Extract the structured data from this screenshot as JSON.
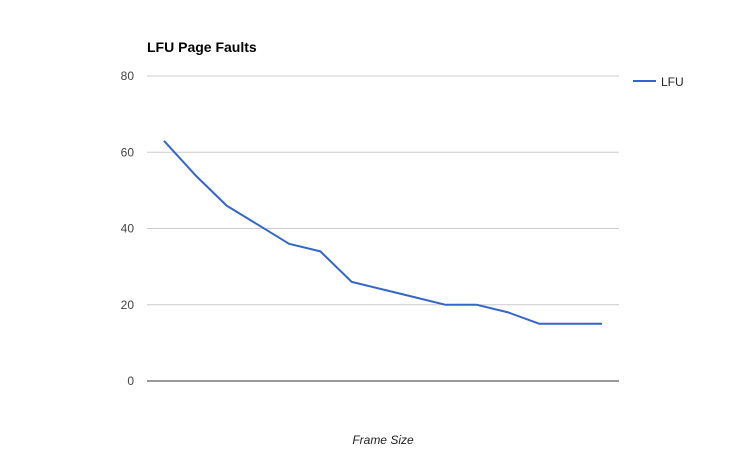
{
  "chart_data": {
    "type": "line",
    "title": "LFU Page Faults",
    "xlabel": "Frame Size",
    "ylabel": "",
    "ylim": [
      0,
      80
    ],
    "yticks": [
      0,
      20,
      40,
      60,
      80
    ],
    "grid": true,
    "legend_position": "right",
    "series": [
      {
        "name": "LFU",
        "color": "#3366cc",
        "values": [
          63,
          54,
          46,
          41,
          36,
          34,
          26,
          24,
          22,
          20,
          20,
          18,
          15,
          15,
          15
        ]
      }
    ]
  }
}
